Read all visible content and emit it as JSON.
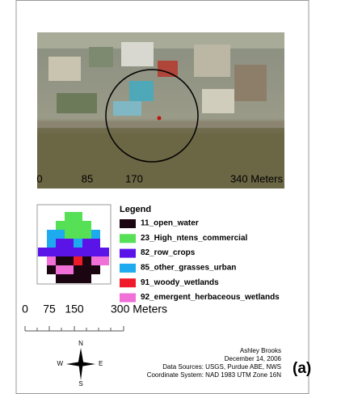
{
  "map_scale": {
    "labels": [
      "0",
      "85",
      "170",
      "340 Meters"
    ]
  },
  "legend": {
    "title": "Legend",
    "items": [
      {
        "label": "11_open_water",
        "color": "#1a0510"
      },
      {
        "label": "23_High_ntens_commercial",
        "color": "#55e055"
      },
      {
        "label": "82_row_crops",
        "color": "#5a14e8"
      },
      {
        "label": "85_other_grasses_urban",
        "color": "#1eaaee"
      },
      {
        "label": "91_woody_wetlands",
        "color": "#ee1a2a"
      },
      {
        "label": "92_emergent_herbaceous_wetlands",
        "color": "#f070d8"
      }
    ]
  },
  "grid_scale": {
    "labels": [
      "0",
      "75",
      "150",
      "300 Meters"
    ]
  },
  "north_arrow": {
    "n": "N",
    "s": "S",
    "e": "E",
    "w": "W"
  },
  "credits": [
    "Ashley Brooks",
    "December 14, 2006",
    "Data Sources: USGS, Purdue ABE, NWS",
    "Coordinate System: NAD 1983 UTM Zone 16N"
  ],
  "panel_label": "(a)"
}
